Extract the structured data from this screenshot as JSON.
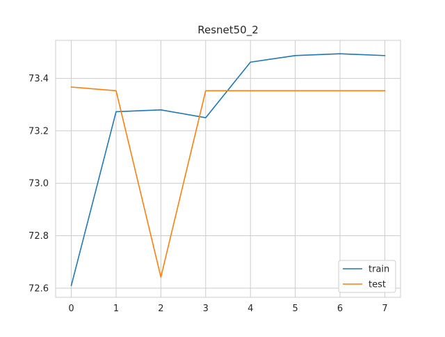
{
  "chart_data": {
    "type": "line",
    "title": "Resnet50_2",
    "xlabel": "",
    "ylabel": "",
    "x": [
      0,
      1,
      2,
      3,
      4,
      5,
      6,
      7
    ],
    "xlim": [
      -0.35,
      7.35
    ],
    "ylim": [
      72.565,
      73.545
    ],
    "xticks": [
      0,
      1,
      2,
      3,
      4,
      5,
      6,
      7
    ],
    "yticks": [
      "72.6",
      "72.8",
      "73.0",
      "73.2",
      "73.4"
    ],
    "grid": true,
    "legend_position": "lower-right",
    "series": [
      {
        "name": "train",
        "color": "#1f77b4",
        "values": [
          72.61,
          73.273,
          73.28,
          73.25,
          73.462,
          73.487,
          73.494,
          73.487
        ]
      },
      {
        "name": "test",
        "color": "#ff7f0e",
        "values": [
          73.367,
          73.353,
          72.642,
          73.353,
          73.353,
          73.353,
          73.353,
          73.353
        ]
      }
    ]
  }
}
